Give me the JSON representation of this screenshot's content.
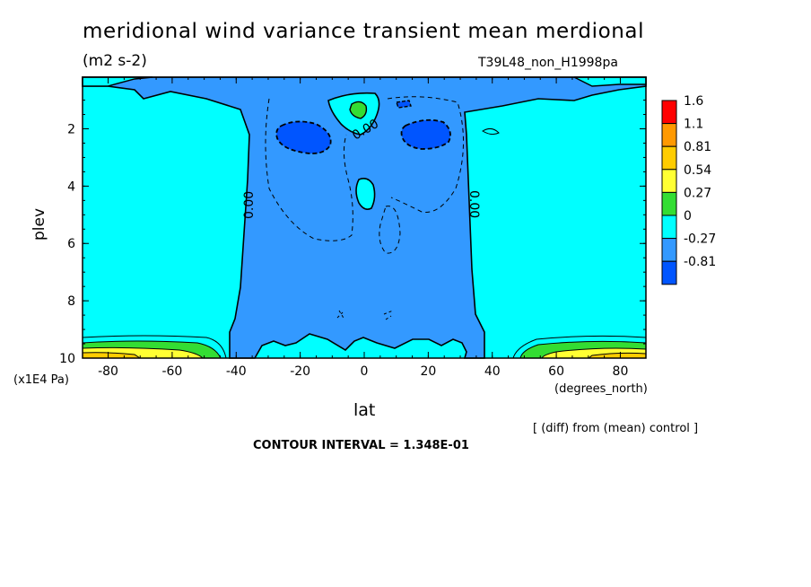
{
  "chart_data": {
    "type": "contour",
    "title": "meridional wind variance transient mean merdional",
    "units": "(m2 s-2)",
    "run_label": "T39L48_non_H1998pa",
    "xlabel": "lat",
    "x_unit_label": "(degrees_north)",
    "ylabel": "plev",
    "y_unit_label": "(x1E4 Pa)",
    "xlim": [
      -88,
      88
    ],
    "ylim": [
      10,
      0.2
    ],
    "x_ticks": [
      "-80",
      "-60",
      "-40",
      "-20",
      "0",
      "20",
      "40",
      "60",
      "80"
    ],
    "y_ticks": [
      "2",
      "4",
      "6",
      "8",
      "10"
    ],
    "contour_labels": [
      "0.00",
      "0.00",
      "0.00"
    ],
    "legend": {
      "labels": [
        "1.6",
        "1.1",
        "0.81",
        "0.54",
        "0.27",
        "0",
        "-0.27",
        "-0.81"
      ],
      "colors": [
        "#ff0000",
        "#ff9900",
        "#ffcc00",
        "#ffff33",
        "#33dd33",
        "#00ffff",
        "#3399ff",
        "#0055ff"
      ]
    },
    "diff_note": "[ (diff) from (mean) control ]",
    "contour_interval": "CONTOUR INTERVAL = 1.348E-01"
  },
  "colors": {
    "positive_small": "#00ffff",
    "negative_small": "#3399ff",
    "negative_large": "#0055ff",
    "positive_mid": "#33dd33",
    "positive_high": "#ffff33",
    "positive_higher": "#ffcc00"
  }
}
